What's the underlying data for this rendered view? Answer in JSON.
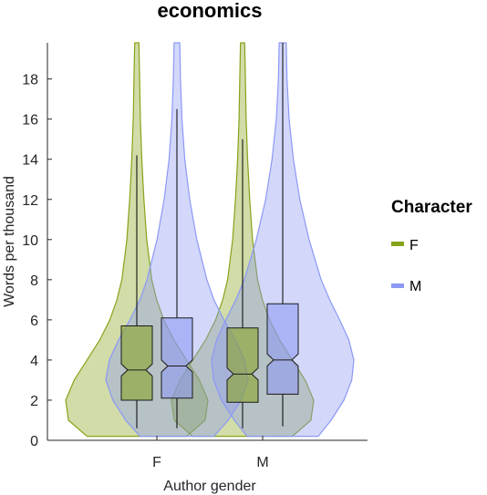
{
  "chart_data": {
    "type": "violin",
    "title": "economics",
    "xlabel": "Author gender",
    "ylabel": "Words per thousand",
    "categories": [
      "F",
      "M"
    ],
    "ylim": [
      0,
      19.8
    ],
    "yticks": [
      0,
      2,
      4,
      6,
      8,
      10,
      12,
      14,
      16,
      18
    ],
    "grid": false,
    "legend": {
      "title": "Character",
      "position": "right",
      "entries": [
        {
          "label": "F",
          "color": "#86A31A"
        },
        {
          "label": "M",
          "color": "#8C98F5"
        }
      ]
    },
    "series": [
      {
        "name": "F",
        "color": "#86A31A",
        "groups": [
          {
            "category": "F",
            "box": {
              "whisker_low": 0.6,
              "q1": 2.0,
              "median": 3.5,
              "q3": 5.7,
              "whisker_high": 14.2,
              "notch_low": 3.2,
              "notch_high": 3.8
            },
            "density": [
              [
                0.2,
                0.7
              ],
              [
                1.0,
                0.96
              ],
              [
                2.0,
                1.0
              ],
              [
                3.0,
                0.88
              ],
              [
                4.0,
                0.7
              ],
              [
                5.0,
                0.52
              ],
              [
                6.0,
                0.38
              ],
              [
                7.0,
                0.28
              ],
              [
                8.0,
                0.21
              ],
              [
                10.0,
                0.14
              ],
              [
                12.0,
                0.1
              ],
              [
                14.0,
                0.07
              ],
              [
                16.0,
                0.05
              ],
              [
                18.0,
                0.04
              ],
              [
                19.8,
                0.03
              ]
            ]
          },
          {
            "category": "M",
            "box": {
              "whisker_low": 0.6,
              "q1": 1.9,
              "median": 3.3,
              "q3": 5.6,
              "whisker_high": 15.0,
              "notch_low": 3.0,
              "notch_high": 3.6
            },
            "density": [
              [
                0.2,
                0.7
              ],
              [
                1.0,
                0.96
              ],
              [
                2.0,
                1.0
              ],
              [
                3.0,
                0.88
              ],
              [
                4.0,
                0.7
              ],
              [
                5.0,
                0.52
              ],
              [
                6.0,
                0.38
              ],
              [
                7.0,
                0.28
              ],
              [
                8.0,
                0.21
              ],
              [
                10.0,
                0.14
              ],
              [
                12.0,
                0.1
              ],
              [
                14.0,
                0.07
              ],
              [
                16.0,
                0.05
              ],
              [
                18.0,
                0.04
              ],
              [
                19.8,
                0.03
              ]
            ]
          }
        ]
      },
      {
        "name": "M",
        "color": "#8C98F5",
        "groups": [
          {
            "category": "F",
            "box": {
              "whisker_low": 0.6,
              "q1": 2.1,
              "median": 3.7,
              "q3": 6.1,
              "whisker_high": 16.5,
              "notch_low": 3.4,
              "notch_high": 4.0
            },
            "density": [
              [
                0.2,
                0.52
              ],
              [
                1.0,
                0.72
              ],
              [
                2.0,
                0.9
              ],
              [
                3.0,
                1.0
              ],
              [
                4.0,
                0.95
              ],
              [
                5.0,
                0.82
              ],
              [
                6.0,
                0.66
              ],
              [
                7.0,
                0.52
              ],
              [
                8.0,
                0.42
              ],
              [
                10.0,
                0.28
              ],
              [
                12.0,
                0.18
              ],
              [
                14.0,
                0.11
              ],
              [
                16.0,
                0.07
              ],
              [
                18.0,
                0.05
              ],
              [
                19.8,
                0.04
              ]
            ]
          },
          {
            "category": "M",
            "box": {
              "whisker_low": 0.7,
              "q1": 2.3,
              "median": 4.0,
              "q3": 6.8,
              "whisker_high": 19.8,
              "notch_low": 3.7,
              "notch_high": 4.3
            },
            "density": [
              [
                0.2,
                0.5
              ],
              [
                1.0,
                0.68
              ],
              [
                2.0,
                0.86
              ],
              [
                3.0,
                0.97
              ],
              [
                4.0,
                1.0
              ],
              [
                5.0,
                0.93
              ],
              [
                6.0,
                0.8
              ],
              [
                7.0,
                0.66
              ],
              [
                8.0,
                0.54
              ],
              [
                10.0,
                0.37
              ],
              [
                12.0,
                0.24
              ],
              [
                14.0,
                0.15
              ],
              [
                16.0,
                0.09
              ],
              [
                18.0,
                0.06
              ],
              [
                19.8,
                0.05
              ]
            ]
          }
        ]
      }
    ]
  }
}
